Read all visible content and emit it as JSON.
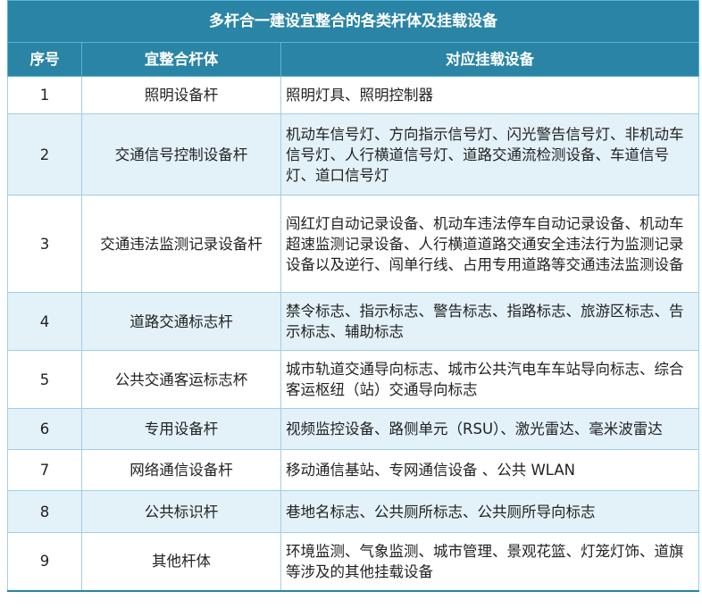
{
  "table": {
    "title": "多杆合一建设宜整合的各类杆体及挂载设备",
    "columns": [
      "序号",
      "宜整合杆体",
      "对应挂载设备"
    ],
    "rows": [
      {
        "no": "1",
        "pole": "照明设备杆",
        "devices": "照明灯具、照明控制器"
      },
      {
        "no": "2",
        "pole": "交通信号控制设备杆",
        "devices": "机动车信号灯、方向指示信号灯、闪光警告信号灯、非机动车信号灯、人行横道信号灯、道路交通流检测设备、车道信号灯、道口信号灯"
      },
      {
        "no": "3",
        "pole": "交通违法监测记录设备杆",
        "devices": "闯红灯自动记录设备、机动车违法停车自动记录设备、机动车超速监测记录设备、人行横道道路交通安全违法行为监测记录设备以及逆行、闯单行线、占用专用道路等交通违法监测设备"
      },
      {
        "no": "4",
        "pole": "道路交通标志杆",
        "devices": "禁令标志、指示标志、警告标志、指路标志、旅游区标志、告示标志、辅助标志"
      },
      {
        "no": "5",
        "pole": "公共交通客运标志杯",
        "devices": "城市轨道交通导向标志、城市公共汽电车车站导向标志、综合客运枢纽（站）交通导向标志"
      },
      {
        "no": "6",
        "pole": "专用设备杆",
        "devices": "视频监控设备、路侧单元（RSU）、激光雷达、毫米波雷达"
      },
      {
        "no": "7",
        "pole": "网络通信设备杆",
        "devices": "移动通信基站、专网通信设备 、公共 WLAN"
      },
      {
        "no": "8",
        "pole": "公共标识杆",
        "devices": "巷地名标志、公共厕所标志、公共厕所导向标志"
      },
      {
        "no": "9",
        "pole": "其他杆体",
        "devices": "环境监测、气象监测、城市管理、景观花篮、灯笼灯饰、道旗等涉及的其他挂载设备"
      }
    ]
  },
  "colors": {
    "header": "#2a84a5",
    "alt_row": "#e3f1f9",
    "border": "#9fcfe6"
  }
}
